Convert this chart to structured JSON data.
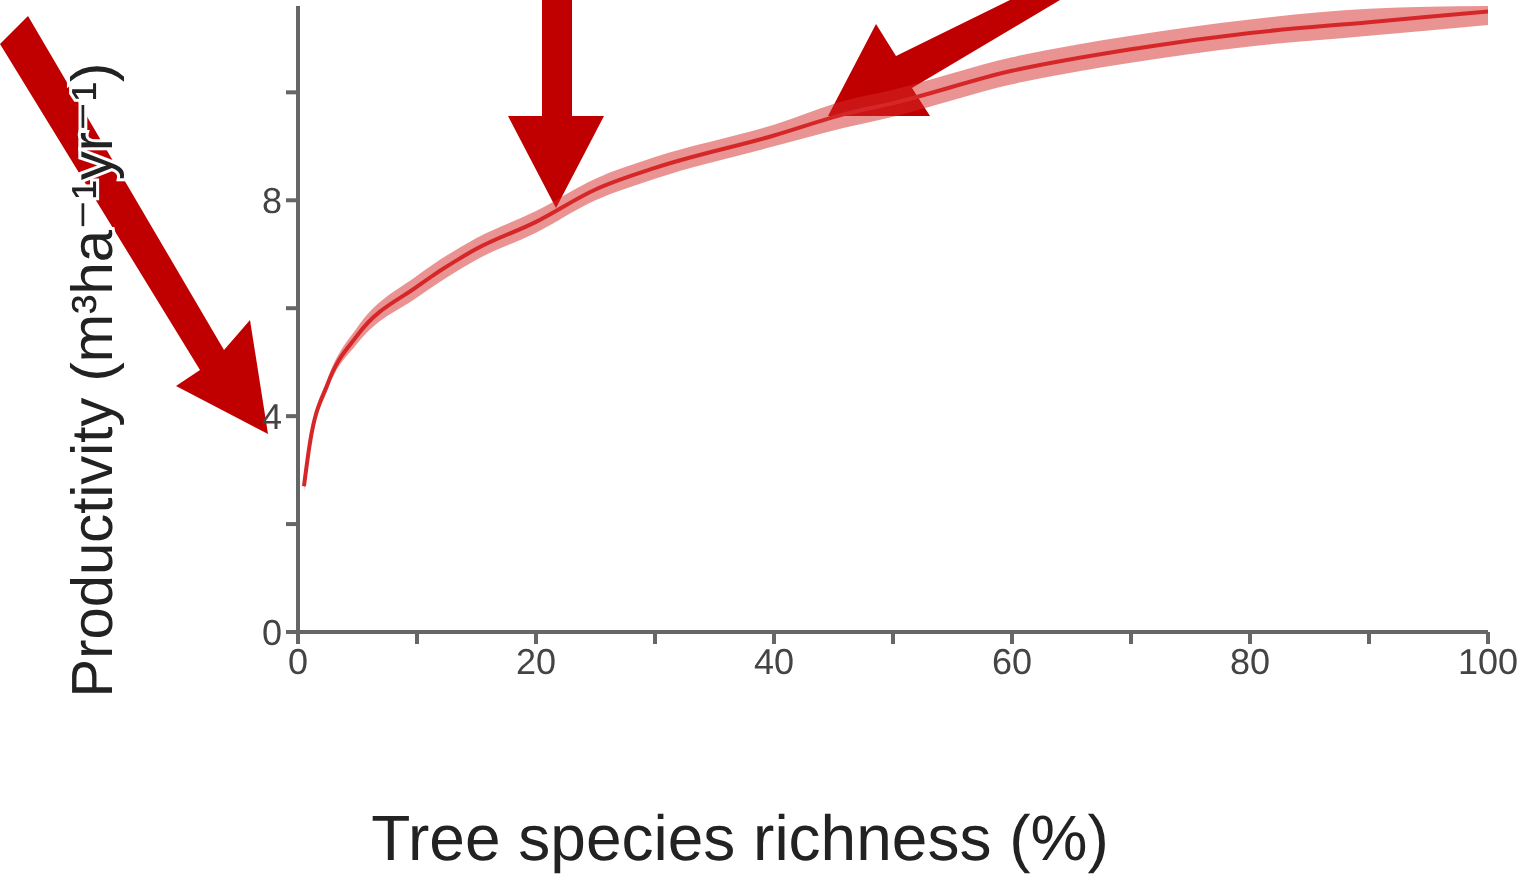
{
  "chart_data": {
    "type": "line",
    "xlabel": "Tree species richness (%)",
    "ylabel": "Productivity (m³ha⁻¹yr⁻¹)",
    "x": [
      0.5,
      1,
      2.5,
      5,
      10,
      15,
      20,
      25,
      30,
      40,
      46,
      50,
      60,
      70,
      80,
      90,
      100
    ],
    "series": [
      {
        "color": "#d62728",
        "values": [
          2.7,
          3.5,
          4.6,
          5.5,
          6.4,
          7.1,
          7.6,
          8.2,
          8.6,
          9.2,
          9.6,
          9.8,
          10.4,
          10.8,
          11.1,
          11.3,
          11.5
        ],
        "lower": [
          2.6,
          3.4,
          4.5,
          5.35,
          6.2,
          6.9,
          7.4,
          8.0,
          8.4,
          9.0,
          9.35,
          9.55,
          10.15,
          10.55,
          10.85,
          11.05,
          11.25
        ],
        "upper": [
          2.8,
          3.6,
          4.7,
          5.65,
          6.6,
          7.3,
          7.8,
          8.4,
          8.8,
          9.4,
          9.85,
          10.05,
          10.65,
          11.05,
          11.35,
          11.55,
          11.6
        ]
      }
    ],
    "xlim": [
      0,
      100
    ],
    "xticks": [
      0,
      {
        "value": 10,
        "label": null
      },
      20,
      {
        "value": 30,
        "label": null
      },
      40,
      {
        "value": 50,
        "label": null
      },
      60,
      {
        "value": 70,
        "label": null
      },
      80,
      {
        "value": 90,
        "label": null
      },
      100
    ],
    "ylim": [
      0,
      11.6
    ],
    "yticks": [
      0,
      {
        "value": 2,
        "label": null
      },
      4,
      {
        "value": 6,
        "label": null
      },
      8,
      {
        "value": 10,
        "label": null
      }
    ],
    "grid": false,
    "legend": false,
    "marker": "none",
    "line_style": "solid"
  }
}
